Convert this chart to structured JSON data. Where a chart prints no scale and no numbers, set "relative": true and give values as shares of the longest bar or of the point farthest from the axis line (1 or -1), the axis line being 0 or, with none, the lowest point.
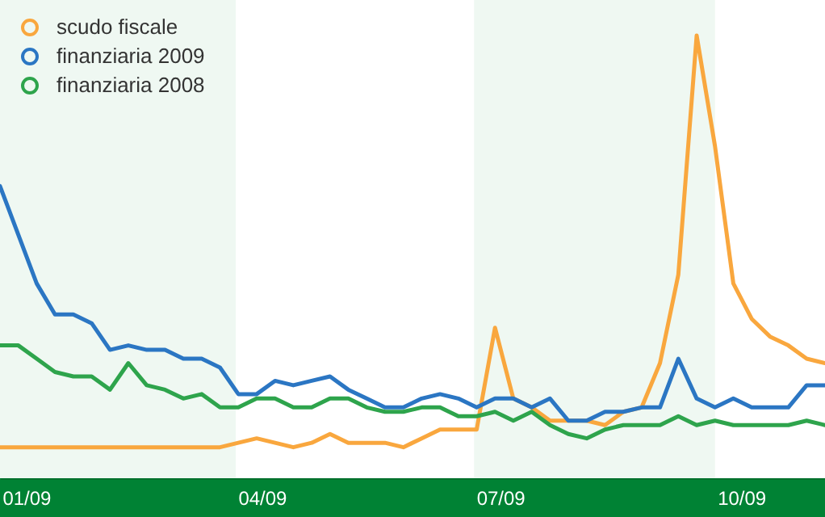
{
  "chart_data": {
    "type": "line",
    "relative": true,
    "x": [
      "2009-01-01",
      "2009-01-08",
      "2009-01-15",
      "2009-01-22",
      "2009-01-29",
      "2009-02-05",
      "2009-02-12",
      "2009-02-19",
      "2009-02-26",
      "2009-03-05",
      "2009-03-12",
      "2009-03-19",
      "2009-03-26",
      "2009-04-02",
      "2009-04-09",
      "2009-04-16",
      "2009-04-23",
      "2009-04-30",
      "2009-05-07",
      "2009-05-14",
      "2009-05-21",
      "2009-05-28",
      "2009-06-04",
      "2009-06-11",
      "2009-06-18",
      "2009-06-25",
      "2009-07-02",
      "2009-07-09",
      "2009-07-16",
      "2009-07-23",
      "2009-07-30",
      "2009-08-06",
      "2009-08-13",
      "2009-08-20",
      "2009-08-27",
      "2009-09-03",
      "2009-09-10",
      "2009-09-17",
      "2009-09-24",
      "2009-10-01",
      "2009-10-08",
      "2009-10-15",
      "2009-10-22",
      "2009-10-29",
      "2009-11-05",
      "2009-11-12"
    ],
    "xlim": [
      "2009-01-01",
      "2009-11-12"
    ],
    "xticks": [
      {
        "value": "2009-01-11",
        "label": "01/09"
      },
      {
        "value": "2009-04-11",
        "label": "04/09"
      },
      {
        "value": "2009-07-11",
        "label": "07/09"
      },
      {
        "value": "2009-10-11",
        "label": "10/09"
      }
    ],
    "series": [
      {
        "name": "scudo fiscale",
        "color": "#f9a73e",
        "values": [
          0.07,
          0.07,
          0.07,
          0.07,
          0.07,
          0.07,
          0.07,
          0.07,
          0.07,
          0.07,
          0.07,
          0.07,
          0.07,
          0.08,
          0.09,
          0.08,
          0.07,
          0.08,
          0.1,
          0.08,
          0.08,
          0.08,
          0.07,
          0.09,
          0.11,
          0.11,
          0.11,
          0.34,
          0.18,
          0.16,
          0.13,
          0.13,
          0.13,
          0.12,
          0.15,
          0.16,
          0.26,
          0.46,
          1,
          0.75,
          0.44,
          0.36,
          0.32,
          0.3,
          0.27,
          0.26
        ]
      },
      {
        "name": "finanziaria 2009",
        "color": "#2b76c3",
        "values": [
          0.66,
          0.55,
          0.44,
          0.37,
          0.37,
          0.35,
          0.29,
          0.3,
          0.29,
          0.29,
          0.27,
          0.27,
          0.25,
          0.19,
          0.19,
          0.22,
          0.21,
          0.22,
          0.23,
          0.2,
          0.18,
          0.16,
          0.16,
          0.18,
          0.19,
          0.18,
          0.16,
          0.18,
          0.18,
          0.16,
          0.18,
          0.13,
          0.13,
          0.15,
          0.15,
          0.16,
          0.16,
          0.27,
          0.18,
          0.16,
          0.18,
          0.16,
          0.16,
          0.16,
          0.21,
          0.21
        ]
      },
      {
        "name": "finanziaria 2008",
        "color": "#2ea44c",
        "values": [
          0.3,
          0.3,
          0.27,
          0.24,
          0.23,
          0.23,
          0.2,
          0.26,
          0.21,
          0.2,
          0.18,
          0.19,
          0.16,
          0.16,
          0.18,
          0.18,
          0.16,
          0.16,
          0.18,
          0.18,
          0.16,
          0.15,
          0.15,
          0.16,
          0.16,
          0.14,
          0.14,
          0.15,
          0.13,
          0.15,
          0.12,
          0.1,
          0.09,
          0.11,
          0.12,
          0.12,
          0.12,
          0.14,
          0.12,
          0.13,
          0.12,
          0.12,
          0.12,
          0.12,
          0.13,
          0.12
        ]
      }
    ],
    "bands": [
      {
        "axis": "x",
        "from": "2009-01-01",
        "to": "2009-04-01",
        "color": "#eff8f2"
      },
      {
        "axis": "x",
        "from": "2009-07-01",
        "to": "2009-10-01",
        "color": "#eff8f2"
      }
    ],
    "legend": "top left",
    "grid": false,
    "marker": "none",
    "line_style": "solid"
  }
}
